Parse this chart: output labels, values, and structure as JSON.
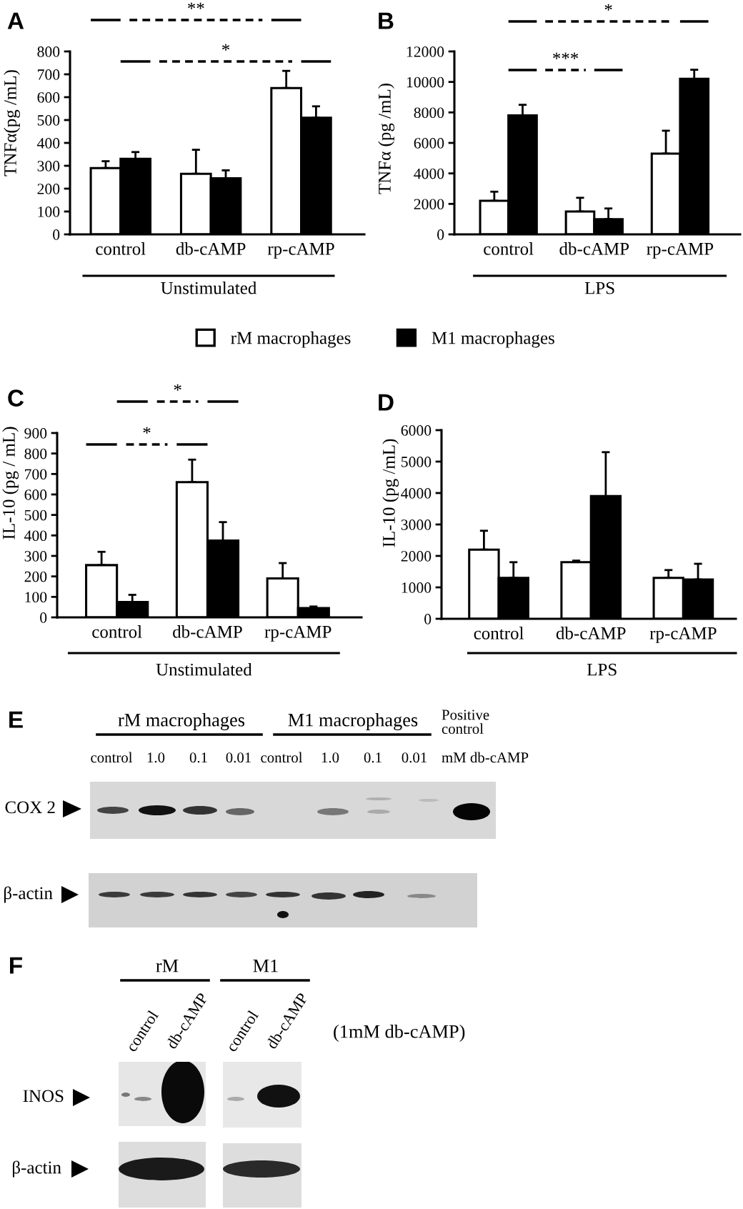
{
  "chart_data": [
    {
      "type": "bar",
      "title": "A",
      "ylabel": "TNFα(pg /mL)",
      "xlabel": "Unstimulated",
      "categories": [
        "control",
        "db-cAMP",
        "rp-cAMP"
      ],
      "series": [
        {
          "name": "rM macrophages",
          "color": "#ffffff",
          "values": [
            290,
            265,
            640
          ],
          "errors": [
            [
              290,
              320
            ],
            [
              265,
              370
            ],
            [
              640,
              715
            ]
          ]
        },
        {
          "name": "M1 macrophages",
          "color": "#000000",
          "values": [
            330,
            245,
            510
          ],
          "errors": [
            [
              330,
              360
            ],
            [
              245,
              280
            ],
            [
              510,
              560
            ]
          ]
        }
      ],
      "ylim": [
        0,
        800
      ],
      "yticks": [
        0,
        100,
        200,
        300,
        400,
        500,
        600,
        700,
        800
      ],
      "legend": "bottom",
      "annotations": [
        "**",
        "*"
      ]
    },
    {
      "type": "bar",
      "title": "B",
      "ylabel": "TNFα (pg /mL)",
      "xlabel": "LPS",
      "categories": [
        "control",
        "db-cAMP",
        "rp-cAMP"
      ],
      "series": [
        {
          "color": "#ffffff",
          "values": [
            2200,
            1500,
            5300
          ],
          "errors": [
            [
              2200,
              2800
            ],
            [
              1500,
              2400
            ],
            [
              5300,
              6800
            ]
          ]
        },
        {
          "color": "#000000",
          "values": [
            7800,
            1000,
            10200
          ],
          "errors": [
            [
              7800,
              8500
            ],
            [
              1000,
              1700
            ],
            [
              10200,
              10800
            ]
          ]
        }
      ],
      "ylim": [
        0,
        12000
      ],
      "yticks": [
        0,
        2000,
        4000,
        6000,
        8000,
        10000,
        12000
      ],
      "annotations": [
        "*",
        "***"
      ]
    },
    {
      "type": "bar",
      "title": "C",
      "ylabel": "IL-10 (pg / mL)",
      "xlabel": "Unstimulated",
      "categories": [
        "control",
        "db-cAMP",
        "rp-cAMP"
      ],
      "series": [
        {
          "color": "#ffffff",
          "values": [
            255,
            660,
            190
          ],
          "errors": [
            [
              255,
              320
            ],
            [
              660,
              770
            ],
            [
              190,
              265
            ]
          ]
        },
        {
          "color": "#000000",
          "values": [
            75,
            375,
            45
          ],
          "errors": [
            [
              75,
              110
            ],
            [
              375,
              465
            ],
            [
              45,
              53
            ]
          ]
        }
      ],
      "ylim": [
        0,
        900
      ],
      "yticks": [
        0,
        100,
        200,
        300,
        400,
        500,
        600,
        700,
        800,
        900
      ],
      "annotations": [
        "*",
        "*"
      ]
    },
    {
      "type": "bar",
      "title": "D",
      "ylabel": "IL-10 (pg /mL)",
      "xlabel": "LPS",
      "categories": [
        "control",
        "db-cAMP",
        "rp-cAMP"
      ],
      "series": [
        {
          "color": "#ffffff",
          "values": [
            2200,
            1800,
            1300
          ],
          "errors": [
            [
              2200,
              2800
            ],
            [
              1800,
              1850
            ],
            [
              1300,
              1550
            ]
          ]
        },
        {
          "color": "#000000",
          "values": [
            1300,
            3900,
            1250
          ],
          "errors": [
            [
              1300,
              1800
            ],
            [
              3900,
              5300
            ],
            [
              1250,
              1750
            ]
          ]
        }
      ],
      "ylim": [
        0,
        6000
      ],
      "yticks": [
        0,
        1000,
        2000,
        3000,
        4000,
        5000,
        6000
      ]
    },
    {
      "type": "other",
      "title": "E",
      "annotations": [
        "rM macrophages",
        "M1 macrophages",
        "Positive\ncontrol",
        "control",
        "1.0",
        "0.1",
        "0.01",
        "control",
        "1.0",
        "0.1",
        "0.01",
        "mM db-cAMP",
        "COX 2",
        "β-actin"
      ]
    },
    {
      "type": "other",
      "title": "F",
      "annotations": [
        "rM",
        "M1",
        "control",
        "db-cAMP",
        "control",
        "db-cAMP",
        "(1mM db-cAMP)",
        "INOS",
        "β-actin"
      ]
    }
  ]
}
